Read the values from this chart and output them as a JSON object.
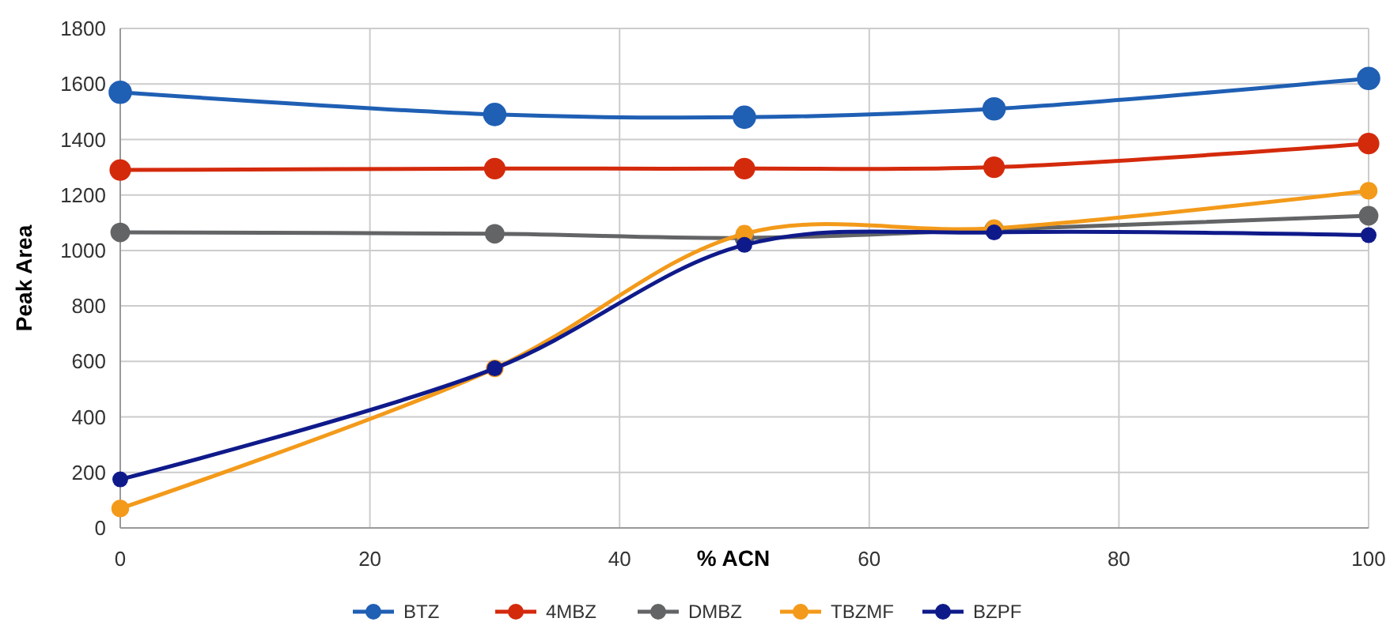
{
  "chart_data": {
    "type": "line",
    "xlabel": "% ACN",
    "ylabel": "Peak Area",
    "x": [
      0,
      30,
      50,
      70,
      100
    ],
    "series": [
      {
        "name": "BTZ",
        "color": "#1f5fb4",
        "values": [
          1570,
          1490,
          1480,
          1510,
          1620
        ]
      },
      {
        "name": "4MBZ",
        "color": "#d42a0c",
        "values": [
          1290,
          1295,
          1295,
          1300,
          1385
        ]
      },
      {
        "name": "DMBZ",
        "color": "#636466",
        "values": [
          1065,
          1060,
          1045,
          1075,
          1125
        ]
      },
      {
        "name": "TBZMF",
        "color": "#f39a1a",
        "values": [
          70,
          575,
          1060,
          1080,
          1215
        ]
      },
      {
        "name": "BZPF",
        "color": "#0f1a8a",
        "values": [
          175,
          575,
          1020,
          1065,
          1055
        ]
      }
    ],
    "xlim": [
      0,
      100
    ],
    "xticks": [
      0,
      20,
      40,
      60,
      80,
      100
    ],
    "ylim": [
      0,
      1800
    ],
    "yticks": [
      0,
      200,
      400,
      600,
      800,
      1000,
      1200,
      1400,
      1600,
      1800
    ],
    "grid": true,
    "legend": "bottom",
    "marker": "circle",
    "line_style": "solid"
  }
}
